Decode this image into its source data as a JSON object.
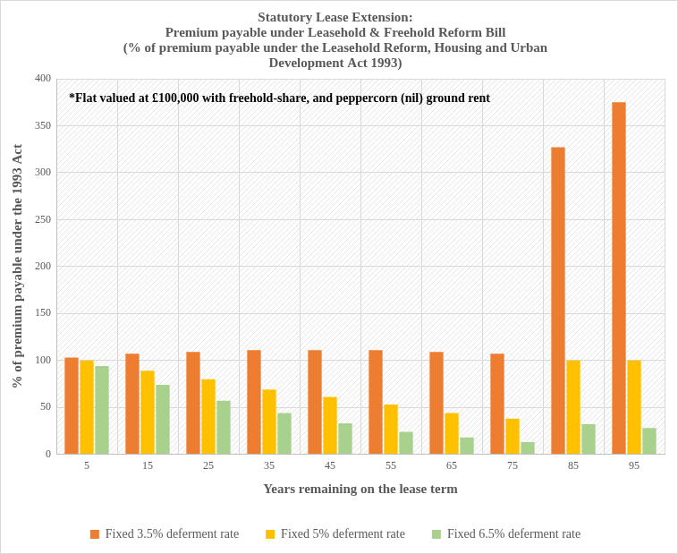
{
  "chart_data": {
    "type": "bar",
    "title": [
      "Statutory Lease Extension:",
      "Premium payable under Leasehold & Freehold Reform Bill",
      "(% of premium payable under the Leasehold Reform, Housing and Urban",
      "Development Act 1993)"
    ],
    "annotation": "*Flat valued at £100,000 with freehold-share, and peppercorn (nil) ground rent",
    "x_label": "Years remaining on the lease term",
    "y_label": "% of premium payable under the 1993 Act",
    "categories": [
      "5",
      "15",
      "25",
      "35",
      "45",
      "55",
      "65",
      "75",
      "85",
      "95"
    ],
    "series": [
      {
        "name": "Fixed 3.5% deferment rate",
        "color": "#ed7d31",
        "values": [
          103,
          107,
          109,
          111,
          111,
          111,
          109,
          107,
          327,
          375
        ]
      },
      {
        "name": "Fixed 5% deferment rate",
        "color": "#ffc000",
        "values": [
          100,
          89,
          80,
          69,
          61,
          53,
          44,
          38,
          100,
          100
        ]
      },
      {
        "name": "Fixed 6.5% deferment rate",
        "color": "#a9d18e",
        "values": [
          94,
          74,
          57,
          44,
          33,
          24,
          18,
          13,
          32,
          28
        ]
      }
    ],
    "ylim": [
      0,
      400
    ],
    "yticks": [
      0,
      50,
      100,
      150,
      200,
      250,
      300,
      350,
      400
    ],
    "grid": true,
    "legend": "bottom"
  }
}
